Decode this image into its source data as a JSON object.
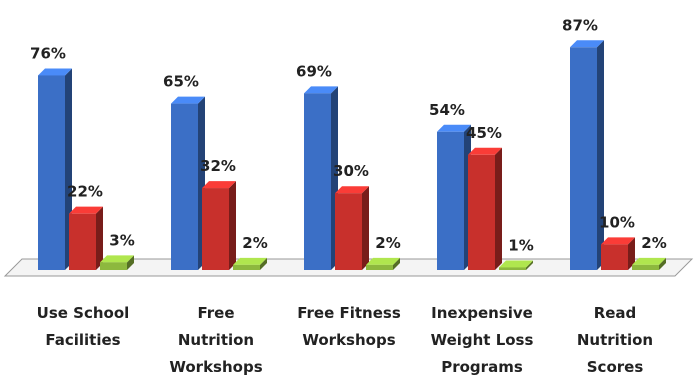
{
  "chart_data": {
    "type": "bar3d",
    "categories": [
      "Use School\nFacilities",
      "Free\nNutrition\nWorkshops",
      "Free Fitness\nWorkshops",
      "Inexpensive\nWeight Loss\nPrograms",
      "Read\nNutrition\nScores"
    ],
    "series": [
      {
        "color": "#3b6fc6",
        "values": [
          76,
          65,
          69,
          54,
          87
        ],
        "value_labels": [
          "76%",
          "65%",
          "69%",
          "54%",
          "87%"
        ]
      },
      {
        "color": "#c8302c",
        "values": [
          22,
          32,
          30,
          45,
          10
        ],
        "value_labels": [
          "22%",
          "32%",
          "30%",
          "45%",
          "10%"
        ]
      },
      {
        "color": "#8db83e",
        "values": [
          3,
          2,
          2,
          1,
          2
        ],
        "value_labels": [
          "3%",
          "2%",
          "2%",
          "1%",
          "2%"
        ]
      }
    ]
  }
}
